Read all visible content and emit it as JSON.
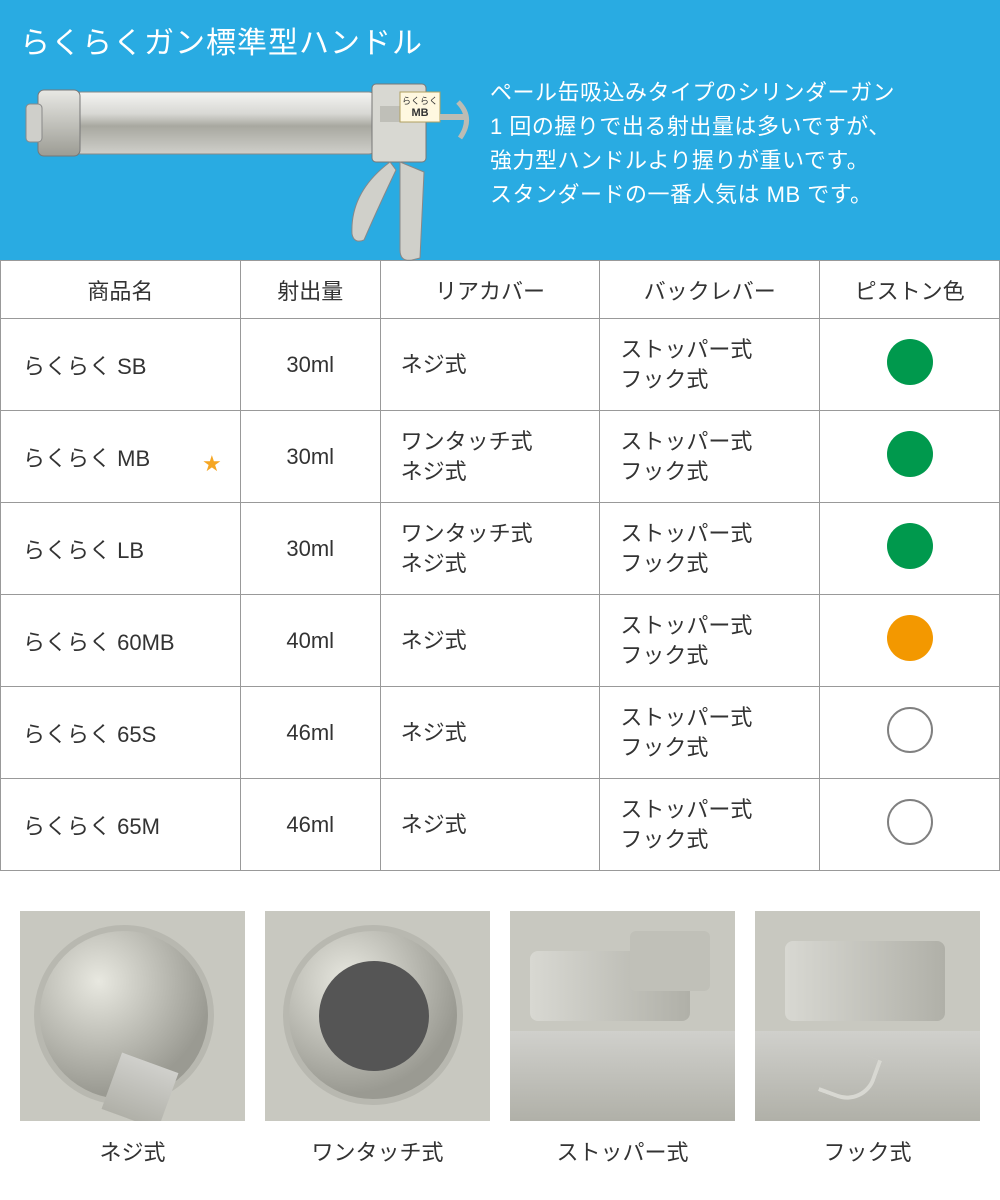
{
  "hero": {
    "title": "らくらくガン標準型ハンドル",
    "description_lines": [
      "ペール缶吸込みタイプのシリンダーガン",
      "1 回の握りで出る射出量は多いですが、",
      "強力型ハンドルより握りが重いです。",
      "スタンダードの一番人気は MB です。"
    ],
    "bg_color": "#29abe2",
    "title_color": "#ffffff",
    "text_color": "#ffffff"
  },
  "table": {
    "columns": [
      "商品名",
      "射出量",
      "リアカバー",
      "バックレバー",
      "ピストン色"
    ],
    "rows": [
      {
        "name": "らくらく SB",
        "star": false,
        "volume": "30ml",
        "rear": "ネジ式",
        "lever": "ストッパー式\nフック式",
        "piston": {
          "type": "fill",
          "color": "#00994d"
        }
      },
      {
        "name": "らくらく MB",
        "star": true,
        "volume": "30ml",
        "rear": "ワンタッチ式\nネジ式",
        "lever": "ストッパー式\nフック式",
        "piston": {
          "type": "fill",
          "color": "#00994d"
        }
      },
      {
        "name": "らくらく LB",
        "star": false,
        "volume": "30ml",
        "rear": "ワンタッチ式\nネジ式",
        "lever": "ストッパー式\nフック式",
        "piston": {
          "type": "fill",
          "color": "#00994d"
        }
      },
      {
        "name": "らくらく 60MB",
        "star": false,
        "volume": "40ml",
        "rear": "ネジ式",
        "lever": "ストッパー式\nフック式",
        "piston": {
          "type": "fill",
          "color": "#f39800"
        }
      },
      {
        "name": "らくらく 65S",
        "star": false,
        "volume": "46ml",
        "rear": "ネジ式",
        "lever": "ストッパー式\nフック式",
        "piston": {
          "type": "outline",
          "color": "#ffffff"
        }
      },
      {
        "name": "らくらく 65M",
        "star": false,
        "volume": "46ml",
        "rear": "ネジ式",
        "lever": "ストッパー式\nフック式",
        "piston": {
          "type": "outline",
          "color": "#ffffff"
        }
      }
    ],
    "border_color": "#999999",
    "star_color": "#f5a623"
  },
  "thumbnails": [
    {
      "label": "ネジ式"
    },
    {
      "label": "ワンタッチ式"
    },
    {
      "label": "ストッパー式"
    },
    {
      "label": "フック式"
    }
  ]
}
